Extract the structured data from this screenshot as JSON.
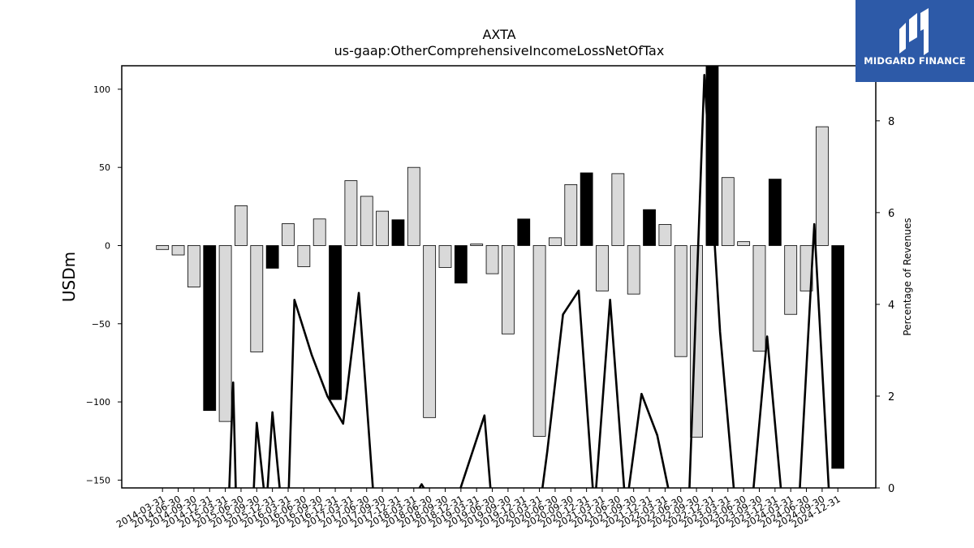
{
  "brand": {
    "name": "MIDGARD FINANCE",
    "color": "#2d5aa8"
  },
  "chart_data": {
    "type": "bar",
    "title": "AXTA",
    "subtitle": "us-gaap:OtherComprehensiveIncomeLossNetOfTax",
    "ylabel": "USDm",
    "y2label": "Percentage of Revenues",
    "ylim": [
      -155,
      115
    ],
    "y2lim": [
      0,
      9.2
    ],
    "yticks": [
      100,
      50,
      0,
      -50,
      -100,
      -150
    ],
    "y2ticks": [
      0,
      2,
      4,
      6,
      8
    ],
    "grid": false,
    "categories": [
      "2014-03-31",
      "2014-06-30",
      "2014-09-30",
      "2014-12-31",
      "2015-03-31",
      "2015-06-30",
      "2015-09-30",
      "2015-12-31",
      "2016-03-31",
      "2016-06-30",
      "2016-09-30",
      "2016-12-31",
      "2017-03-31",
      "2017-06-30",
      "2017-09-30",
      "2017-12-31",
      "2018-03-31",
      "2018-06-30",
      "2018-09-30",
      "2018-12-31",
      "2019-03-31",
      "2019-06-30",
      "2019-09-30",
      "2019-12-31",
      "2020-03-31",
      "2020-06-30",
      "2020-09-30",
      "2020-12-31",
      "2021-03-31",
      "2021-06-30",
      "2021-09-30",
      "2021-12-31",
      "2022-03-31",
      "2022-06-30",
      "2022-09-30",
      "2022-12-31",
      "2023-03-31",
      "2023-06-30",
      "2023-09-30",
      "2023-12-31",
      "2024-03-31",
      "2024-06-30",
      "2024-09-30",
      "2024-12-31"
    ],
    "series": [
      {
        "values": [
          -2.5,
          -6,
          -26.5,
          -105.5,
          -112.5,
          25.5,
          -68,
          -14.5,
          14,
          -13.5,
          17,
          -98.5,
          41.5,
          31.5,
          22,
          16.5,
          50,
          -110,
          -14,
          -24,
          1,
          -18,
          -56.5,
          17,
          -122,
          5,
          39,
          46.5,
          -29,
          46,
          -31,
          23,
          13.5,
          -71,
          -122.5,
          115,
          43.5,
          2.5,
          -67.5,
          42.5,
          -44,
          -29,
          76,
          -142.5
        ],
        "highlight": [
          false,
          false,
          false,
          true,
          false,
          false,
          false,
          true,
          false,
          false,
          false,
          true,
          false,
          false,
          false,
          true,
          false,
          false,
          false,
          true,
          false,
          false,
          false,
          true,
          false,
          false,
          false,
          true,
          false,
          false,
          false,
          true,
          false,
          false,
          false,
          true,
          false,
          false,
          false,
          true,
          false,
          false,
          false,
          true
        ],
        "colors": {
          "normal": "#d9d9d9",
          "highlight": "#000000"
        }
      },
      {
        "axis": "right",
        "line_x": [
          4.4,
          4.2,
          4.5,
          4.7,
          5.3,
          5.4,
          5.75,
          6,
          6.6,
          7.0,
          7.6,
          8,
          8.4,
          9.5,
          10.5,
          11.5,
          12.5,
          13.5,
          14.5,
          15.5,
          16.5,
          17.5,
          18.5,
          20.5,
          21,
          22.5,
          23.5,
          24,
          24.5,
          24.5,
          25.5,
          26.5,
          27.5,
          28.5,
          29.5,
          30.5,
          31.5,
          32.5,
          33.5,
          34.5,
          35.5,
          36.5,
          37.5,
          38.5,
          39.5,
          40.5,
          41.5,
          42.5,
          43.5
        ],
        "line_y": [
          -0.5,
          -0.5,
          2.3,
          -0.5,
          -0.5,
          -0.5,
          -0.5,
          1.42,
          -0.5,
          1.65,
          -0.5,
          -0.5,
          4.1,
          2.9,
          2.0,
          1.4,
          4.25,
          -0.5,
          -0.5,
          -0.5,
          0.08,
          -0.5,
          -0.5,
          1.58,
          -0.5,
          -0.5,
          -0.5,
          -0.5,
          0.8,
          0.8,
          3.78,
          4.3,
          -0.5,
          4.1,
          -0.5,
          2.05,
          1.15,
          -0.5,
          -0.5,
          9.0,
          3.4,
          -0.5,
          -0.5,
          3.3,
          -0.5,
          -0.5,
          5.75,
          -0.5,
          -0.5
        ]
      }
    ]
  }
}
